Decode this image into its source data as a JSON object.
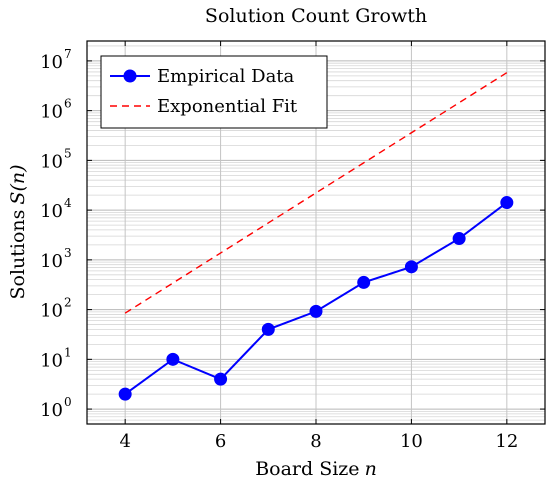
{
  "chart_data": {
    "type": "line",
    "title": "Solution Count Growth",
    "xlabel": {
      "text": "Board Size",
      "var": "n"
    },
    "ylabel": {
      "text": "Solutions",
      "var": "S(n)"
    },
    "y_scale": "log",
    "xlim": [
      3.2,
      12.8
    ],
    "ylim_log10": [
      -0.3,
      7.4
    ],
    "x_ticks": [
      4,
      6,
      8,
      10,
      12
    ],
    "y_ticks": [
      {
        "base": "10",
        "exp": "0"
      },
      {
        "base": "10",
        "exp": "1"
      },
      {
        "base": "10",
        "exp": "2"
      },
      {
        "base": "10",
        "exp": "3"
      },
      {
        "base": "10",
        "exp": "4"
      },
      {
        "base": "10",
        "exp": "5"
      },
      {
        "base": "10",
        "exp": "6"
      },
      {
        "base": "10",
        "exp": "7"
      }
    ],
    "grid": true,
    "legend_position": "top-left",
    "series": [
      {
        "name": "Empirical Data",
        "style": "solid-line-with-markers",
        "color": "#0000ff",
        "x": [
          4,
          5,
          6,
          7,
          8,
          9,
          10,
          11,
          12
        ],
        "y": [
          2,
          10,
          4,
          40,
          92,
          352,
          724,
          2680,
          14200
        ]
      },
      {
        "name": "Exponential Fit",
        "style": "dashed",
        "color": "#ff0000",
        "x": [
          4,
          12
        ],
        "y": [
          85,
          5800000
        ]
      }
    ]
  }
}
